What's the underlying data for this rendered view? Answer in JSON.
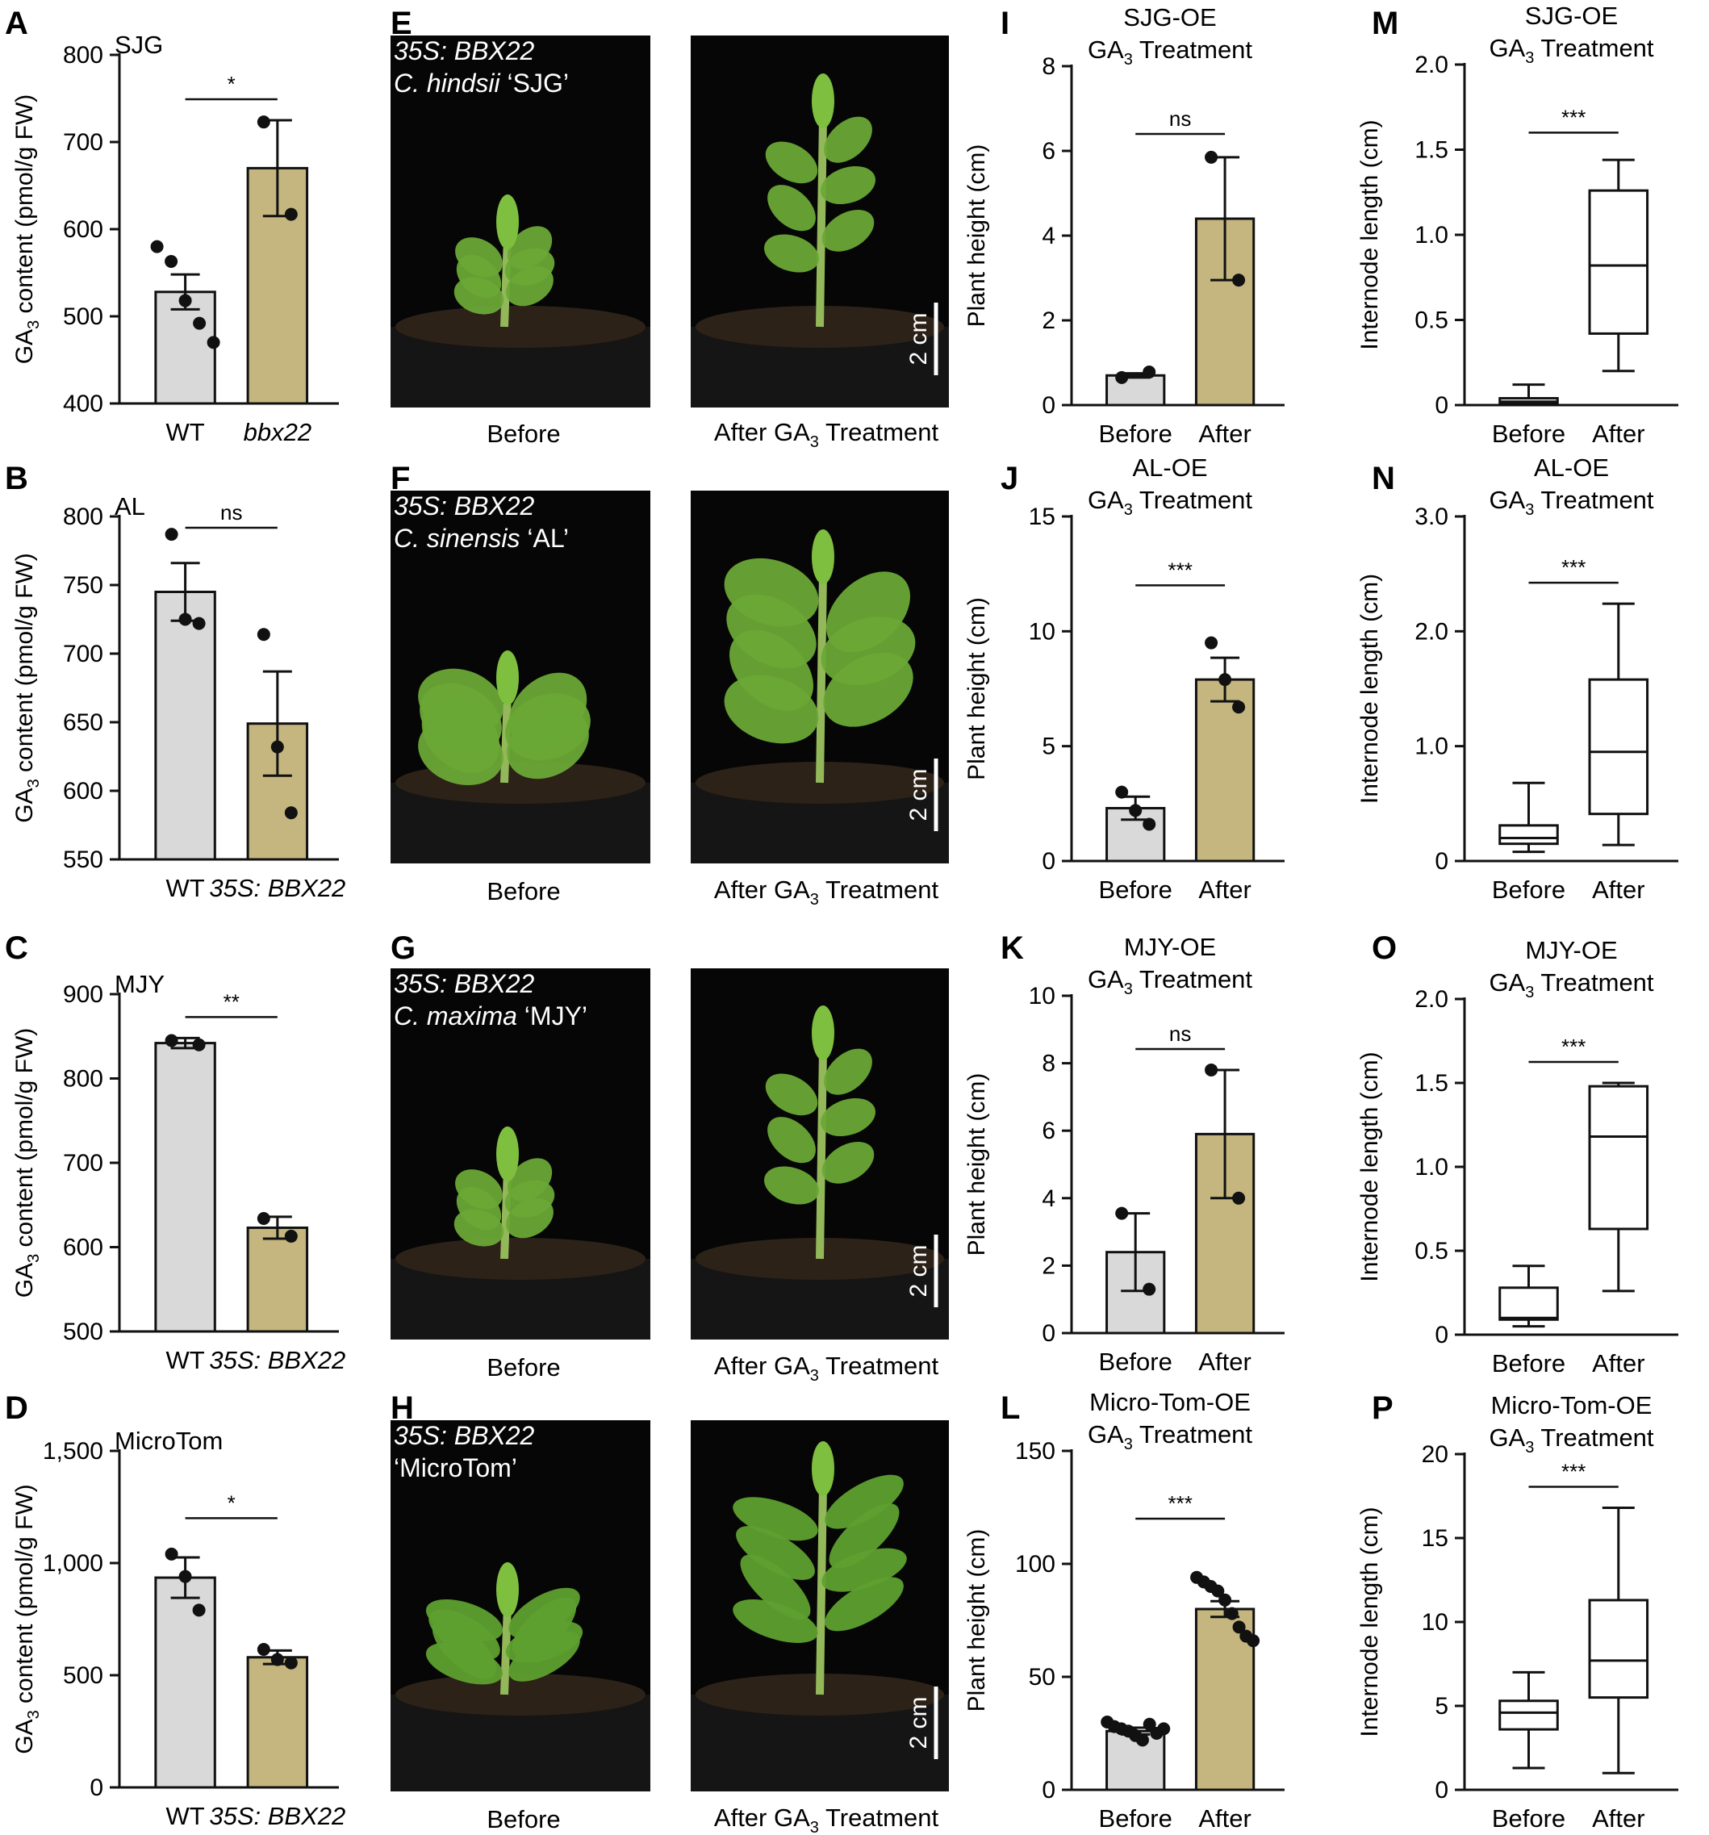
{
  "colors": {
    "wt_bar": "#d9d9d9",
    "ox_bar": "#c4b67e",
    "axis": "#111111",
    "photo_bg": "#060606",
    "soil": "#2c2218",
    "pot": "#151515",
    "leaf": "#6aa836",
    "stem": "#93b85a"
  },
  "chart_data": [
    {
      "id": "A",
      "letter": "A",
      "type": "bar",
      "title_lines": [
        "SJG"
      ],
      "ylabel_main": "GA",
      "ylabel_sub": "3",
      "ylabel_rest": " content (pmol/g FW)",
      "categories": [
        {
          "text": "WT",
          "italic": false
        },
        {
          "text": "bbx22",
          "italic": true
        }
      ],
      "values": [
        528,
        670
      ],
      "errors": [
        20,
        55
      ],
      "points": [
        [
          580,
          563,
          518,
          492,
          470
        ],
        [
          723,
          617
        ]
      ],
      "ylim": [
        400,
        800
      ],
      "yticks": [
        400,
        500,
        600,
        700,
        800
      ],
      "ytick_labels": [
        "400",
        "500",
        "600",
        "700",
        "800"
      ],
      "sig": "*"
    },
    {
      "id": "B",
      "letter": "B",
      "type": "bar",
      "title_lines": [
        "AL"
      ],
      "ylabel_main": "GA",
      "ylabel_sub": "3",
      "ylabel_rest": " content (pmol/g FW)",
      "categories": [
        {
          "text": "WT",
          "italic": false
        },
        {
          "text": "35S: BBX22",
          "italic": true
        }
      ],
      "values": [
        745,
        649
      ],
      "errors": [
        21,
        38
      ],
      "points": [
        [
          787,
          725,
          722
        ],
        [
          714,
          632,
          584
        ]
      ],
      "ylim": [
        550,
        800
      ],
      "yticks": [
        550,
        600,
        650,
        700,
        750,
        800
      ],
      "ytick_labels": [
        "550",
        "600",
        "650",
        "700",
        "750",
        "800"
      ],
      "sig": "ns"
    },
    {
      "id": "C",
      "letter": "C",
      "type": "bar",
      "title_lines": [
        "MJY"
      ],
      "ylabel_main": "GA",
      "ylabel_sub": "3",
      "ylabel_rest": " content (pmol/g FW)",
      "categories": [
        {
          "text": "WT",
          "italic": false
        },
        {
          "text": "35S: BBX22",
          "italic": true
        }
      ],
      "values": [
        842,
        623
      ],
      "errors": [
        6,
        13
      ],
      "points": [
        [
          845,
          840
        ],
        [
          634,
          613
        ]
      ],
      "ylim": [
        500,
        900
      ],
      "yticks": [
        500,
        600,
        700,
        800,
        900
      ],
      "ytick_labels": [
        "500",
        "600",
        "700",
        "800",
        "900"
      ],
      "sig": "**"
    },
    {
      "id": "D",
      "letter": "D",
      "type": "bar",
      "title_lines": [
        "MicroTom"
      ],
      "ylabel_main": "GA",
      "ylabel_sub": "3",
      "ylabel_rest": " content (pmol/g FW)",
      "categories": [
        {
          "text": "WT",
          "italic": false
        },
        {
          "text": "35S: BBX22",
          "italic": true
        }
      ],
      "values": [
        935,
        580
      ],
      "errors": [
        90,
        30
      ],
      "points": [
        [
          1040,
          940,
          790
        ],
        [
          615,
          570,
          555
        ]
      ],
      "ylim": [
        0,
        1500
      ],
      "yticks": [
        0,
        500,
        1000,
        1500
      ],
      "ytick_labels": [
        "0",
        "500",
        "1,000",
        "1,500"
      ],
      "sig": "*"
    },
    {
      "id": "I",
      "letter": "I",
      "type": "bar",
      "title_lines": [
        "SJG-OE",
        "GA|3| Treatment"
      ],
      "ylabel_main": "Plant height (cm)",
      "ylabel_sub": "",
      "ylabel_rest": "",
      "categories": [
        {
          "text": "Before",
          "italic": false
        },
        {
          "text": "After",
          "italic": false
        }
      ],
      "values": [
        0.7,
        4.4
      ],
      "errors": [
        0.05,
        1.45
      ],
      "points": [
        [
          0.65,
          0.78
        ],
        [
          5.85,
          2.95
        ]
      ],
      "ylim": [
        0,
        8
      ],
      "yticks": [
        0,
        2,
        4,
        6,
        8
      ],
      "ytick_labels": [
        "0",
        "2",
        "4",
        "6",
        "8"
      ],
      "sig": "ns"
    },
    {
      "id": "J",
      "letter": "J",
      "type": "bar",
      "title_lines": [
        "AL-OE",
        "GA|3| Treatment"
      ],
      "ylabel_main": "Plant height (cm)",
      "ylabel_sub": "",
      "ylabel_rest": "",
      "categories": [
        {
          "text": "Before",
          "italic": false
        },
        {
          "text": "After",
          "italic": false
        }
      ],
      "values": [
        2.3,
        7.9
      ],
      "errors": [
        0.5,
        0.95
      ],
      "points": [
        [
          3.0,
          2.2,
          1.6
        ],
        [
          9.5,
          7.9,
          6.7
        ]
      ],
      "ylim": [
        0,
        15
      ],
      "yticks": [
        0,
        5,
        10,
        15
      ],
      "ytick_labels": [
        "0",
        "5",
        "10",
        "15"
      ],
      "sig": "***"
    },
    {
      "id": "K",
      "letter": "K",
      "type": "bar",
      "title_lines": [
        "MJY-OE",
        "GA|3| Treatment"
      ],
      "ylabel_main": "Plant height (cm)",
      "ylabel_sub": "",
      "ylabel_rest": "",
      "categories": [
        {
          "text": "Before",
          "italic": false
        },
        {
          "text": "After",
          "italic": false
        }
      ],
      "values": [
        2.4,
        5.9
      ],
      "errors": [
        1.15,
        1.9
      ],
      "points": [
        [
          3.55,
          1.3
        ],
        [
          7.8,
          4.0
        ]
      ],
      "ylim": [
        0,
        10
      ],
      "yticks": [
        0,
        2,
        4,
        6,
        8,
        10
      ],
      "ytick_labels": [
        "0",
        "2",
        "4",
        "6",
        "8",
        "10"
      ],
      "sig": "ns"
    },
    {
      "id": "L",
      "letter": "L",
      "type": "bar",
      "title_lines": [
        "Micro-Tom-OE",
        "GA|3| Treatment"
      ],
      "ylabel_main": "Plant height (cm)",
      "ylabel_sub": "",
      "ylabel_rest": "",
      "categories": [
        {
          "text": "Before",
          "italic": false
        },
        {
          "text": "After",
          "italic": false
        }
      ],
      "values": [
        26,
        80
      ],
      "errors": [
        1.5,
        3.5
      ],
      "points": [
        [
          30,
          28,
          27,
          26,
          24,
          22,
          29,
          25,
          27
        ],
        [
          94,
          92,
          90,
          88,
          84,
          78,
          72,
          68,
          66
        ]
      ],
      "ylim": [
        0,
        150
      ],
      "yticks": [
        0,
        50,
        100,
        150
      ],
      "ytick_labels": [
        "0",
        "50",
        "100",
        "150"
      ],
      "sig": "***"
    },
    {
      "id": "M",
      "letter": "M",
      "type": "box",
      "title_lines": [
        "SJG-OE",
        "GA|3| Treatment"
      ],
      "ylabel_main": "Internode length (cm)",
      "ylabel_sub": "",
      "ylabel_rest": "",
      "categories": [
        {
          "text": "Before",
          "italic": false
        },
        {
          "text": "After",
          "italic": false
        }
      ],
      "boxes": [
        {
          "min": 0,
          "q1": 0.01,
          "median": 0.02,
          "q3": 0.04,
          "max": 0.12
        },
        {
          "min": 0.2,
          "q1": 0.42,
          "median": 0.82,
          "q3": 1.26,
          "max": 1.44
        }
      ],
      "ylim": [
        0,
        2.0
      ],
      "yticks": [
        0,
        0.5,
        1.0,
        1.5,
        2.0
      ],
      "ytick_labels": [
        "0",
        "0.5",
        "1.0",
        "1.5",
        "2.0"
      ],
      "sig": "***"
    },
    {
      "id": "N",
      "letter": "N",
      "type": "box",
      "title_lines": [
        "AL-OE",
        "GA|3| Treatment"
      ],
      "ylabel_main": "Internode length (cm)",
      "ylabel_sub": "",
      "ylabel_rest": "",
      "categories": [
        {
          "text": "Before",
          "italic": false
        },
        {
          "text": "After",
          "italic": false
        }
      ],
      "boxes": [
        {
          "min": 0.08,
          "q1": 0.15,
          "median": 0.2,
          "q3": 0.31,
          "max": 0.68
        },
        {
          "min": 0.14,
          "q1": 0.41,
          "median": 0.95,
          "q3": 1.58,
          "max": 2.24
        }
      ],
      "ylim": [
        0,
        3.0
      ],
      "yticks": [
        0,
        1.0,
        2.0,
        3.0
      ],
      "ytick_labels": [
        "0",
        "1.0",
        "2.0",
        "3.0"
      ],
      "sig": "***"
    },
    {
      "id": "O",
      "letter": "O",
      "type": "box",
      "title_lines": [
        "MJY-OE",
        "GA|3| Treatment"
      ],
      "ylabel_main": "Internode length (cm)",
      "ylabel_sub": "",
      "ylabel_rest": "",
      "categories": [
        {
          "text": "Before",
          "italic": false
        },
        {
          "text": "After",
          "italic": false
        }
      ],
      "boxes": [
        {
          "min": 0.05,
          "q1": 0.09,
          "median": 0.1,
          "q3": 0.28,
          "max": 0.41
        },
        {
          "min": 0.26,
          "q1": 0.63,
          "median": 1.18,
          "q3": 1.48,
          "max": 1.5
        }
      ],
      "ylim": [
        0,
        2.0
      ],
      "yticks": [
        0,
        0.5,
        1.0,
        1.5,
        2.0
      ],
      "ytick_labels": [
        "0",
        "0.5",
        "1.0",
        "1.5",
        "2.0"
      ],
      "sig": "***"
    },
    {
      "id": "P",
      "letter": "P",
      "type": "box",
      "title_lines": [
        "Micro-Tom-OE",
        "GA|3| Treatment"
      ],
      "ylabel_main": "Internode length (cm)",
      "ylabel_sub": "",
      "ylabel_rest": "",
      "categories": [
        {
          "text": "Before",
          "italic": false
        },
        {
          "text": "After",
          "italic": false
        }
      ],
      "boxes": [
        {
          "min": 1.3,
          "q1": 3.6,
          "median": 4.6,
          "q3": 5.3,
          "max": 7.0
        },
        {
          "min": 1.0,
          "q1": 5.5,
          "median": 7.7,
          "q3": 11.3,
          "max": 16.8
        }
      ],
      "ylim": [
        0,
        20
      ],
      "yticks": [
        0,
        5,
        10,
        15,
        20
      ],
      "ytick_labels": [
        "0",
        "5",
        "10",
        "15",
        "20"
      ],
      "sig": "***"
    }
  ],
  "photos": [
    {
      "letter": "E",
      "line1": "35S: BBX22",
      "line2_italic": "C. hindsii",
      "line2_rest": " ‘SJG’",
      "caption_before": "Before",
      "caption_after": "After GA|3| Treatment",
      "scale": "2 cm",
      "plant": "small"
    },
    {
      "letter": "F",
      "line1": "35S: BBX22",
      "line2_italic": "C. sinensis",
      "line2_rest": " ‘AL’",
      "caption_before": "Before",
      "caption_after": "After GA|3| Treatment",
      "scale": "2 cm",
      "plant": "broad"
    },
    {
      "letter": "G",
      "line1": "35S: BBX22",
      "line2_italic": "C. maxima",
      "line2_rest": " ‘MJY’",
      "caption_before": "Before",
      "caption_after": "After GA|3| Treatment",
      "scale": "2 cm",
      "plant": "small"
    },
    {
      "letter": "H",
      "line1": "35S: BBX22",
      "line2_italic": "",
      "line2_rest": "‘MicroTom’",
      "caption_before": "Before",
      "caption_after": "After GA|3| Treatment",
      "scale": "2 cm",
      "plant": "tomato"
    }
  ]
}
